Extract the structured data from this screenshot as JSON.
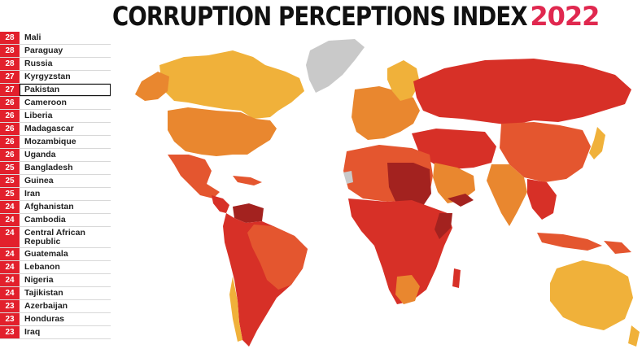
{
  "title": {
    "main": "CORRUPTION PERCEPTIONS INDEX",
    "year": "2022"
  },
  "colors": {
    "accent": "#e0284f",
    "score_bg": "#e2202c",
    "land_very_high": "#a3221f",
    "land_high": "#d73027",
    "land_mid": "#e4562f",
    "land_low": "#e9872f",
    "land_best": "#f0b13a",
    "no_data": "#c9c9c9"
  },
  "ranking": [
    {
      "score": "28",
      "country": "Mali"
    },
    {
      "score": "28",
      "country": "Paraguay"
    },
    {
      "score": "28",
      "country": "Russia"
    },
    {
      "score": "27",
      "country": "Kyrgyzstan"
    },
    {
      "score": "27",
      "country": "Pakistan",
      "selected": true
    },
    {
      "score": "26",
      "country": "Cameroon"
    },
    {
      "score": "26",
      "country": "Liberia"
    },
    {
      "score": "26",
      "country": "Madagascar"
    },
    {
      "score": "26",
      "country": "Mozambique"
    },
    {
      "score": "26",
      "country": "Uganda"
    },
    {
      "score": "25",
      "country": "Bangladesh"
    },
    {
      "score": "25",
      "country": "Guinea"
    },
    {
      "score": "25",
      "country": "Iran"
    },
    {
      "score": "24",
      "country": "Afghanistan"
    },
    {
      "score": "24",
      "country": "Cambodia"
    },
    {
      "score": "24",
      "country": "Central African Republic"
    },
    {
      "score": "24",
      "country": "Guatemala"
    },
    {
      "score": "24",
      "country": "Lebanon"
    },
    {
      "score": "24",
      "country": "Nigeria"
    },
    {
      "score": "24",
      "country": "Tajikistan"
    },
    {
      "score": "23",
      "country": "Azerbaijan"
    },
    {
      "score": "23",
      "country": "Honduras"
    },
    {
      "score": "23",
      "country": "Iraq"
    }
  ]
}
